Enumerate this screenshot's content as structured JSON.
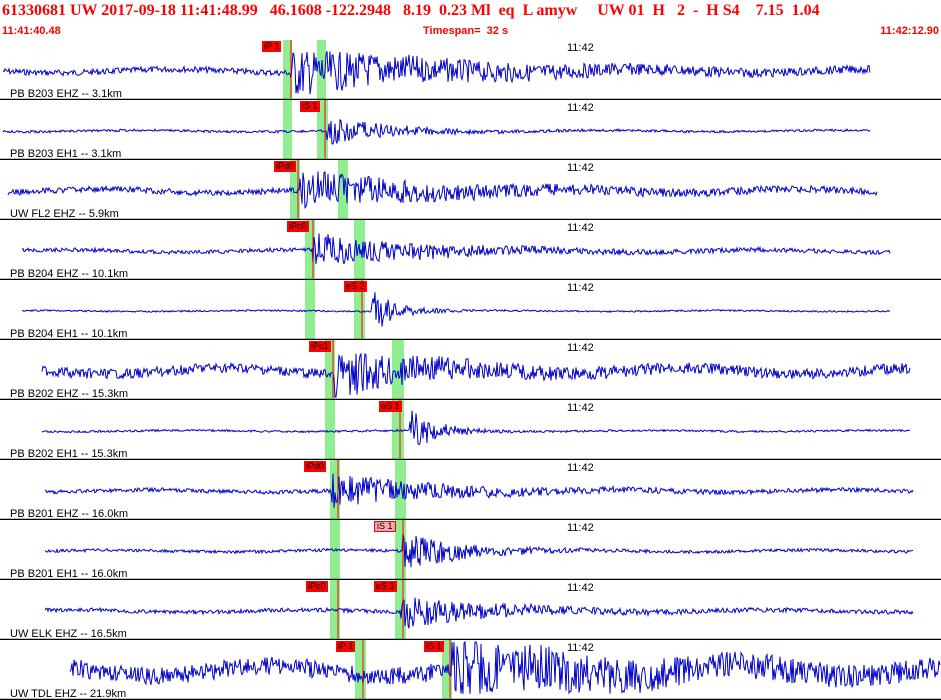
{
  "header": {
    "title": "61330681 UW 2017-09-18 11:41:48.99   46.1608 -122.2948   8.19  0.23 Ml  eq  L amyw     UW 01  H   2  -  H S4    7.15  1.04",
    "start_time": "11:41:40.48",
    "timespan": "Timespan=  32 s",
    "end_time": "11:42:12.90"
  },
  "colors": {
    "header_text": "#ff0000",
    "trace": "#0000cc",
    "pick_window": "#90ee90",
    "pick_tag": "#ff0000",
    "divider": "#000000"
  },
  "time_tick": "11:42",
  "panels": [
    {
      "station": "PB B203 EHZ -- 3.1km",
      "picks": [
        {
          "label": "iP 1",
          "style": "solid"
        }
      ]
    },
    {
      "station": "PB B203 EH1 -- 3.1km",
      "picks": [
        {
          "label": "iS 1",
          "style": "solid"
        }
      ]
    },
    {
      "station": "UW FL2 EHZ -- 5.9km",
      "picks": [
        {
          "label": "iPd0",
          "style": "solid"
        }
      ]
    },
    {
      "station": "PB B204 EHZ -- 10.1km",
      "picks": [
        {
          "label": "iPc0",
          "style": "solid"
        }
      ]
    },
    {
      "station": "PB B204 EH1 -- 10.1km",
      "picks": [
        {
          "label": "eS 2",
          "style": "solid"
        }
      ]
    },
    {
      "station": "PB B202 EHZ -- 15.3km",
      "picks": [
        {
          "label": "iPc1",
          "style": "solid"
        }
      ]
    },
    {
      "station": "PB B202 EH1 -- 15.3km",
      "picks": [
        {
          "label": "eS 1",
          "style": "solid"
        }
      ]
    },
    {
      "station": "PB B201 EHZ -- 16.0km",
      "picks": [
        {
          "label": "iPd0",
          "style": "solid"
        }
      ]
    },
    {
      "station": "PB B201 EH1 -- 16.0km",
      "picks": [
        {
          "label": "iS 1",
          "style": "light"
        }
      ]
    },
    {
      "station": "UW ELK EHZ -- 16.5km",
      "picks": [
        {
          "label": "iPc0",
          "style": "solid"
        },
        {
          "label": "eS 1",
          "style": "solid"
        }
      ]
    },
    {
      "station": "UW TDL EHZ -- 21.9km",
      "picks": [
        {
          "label": "iP 1",
          "style": "solid"
        },
        {
          "label": "iS 1",
          "style": "solid"
        }
      ]
    }
  ]
}
